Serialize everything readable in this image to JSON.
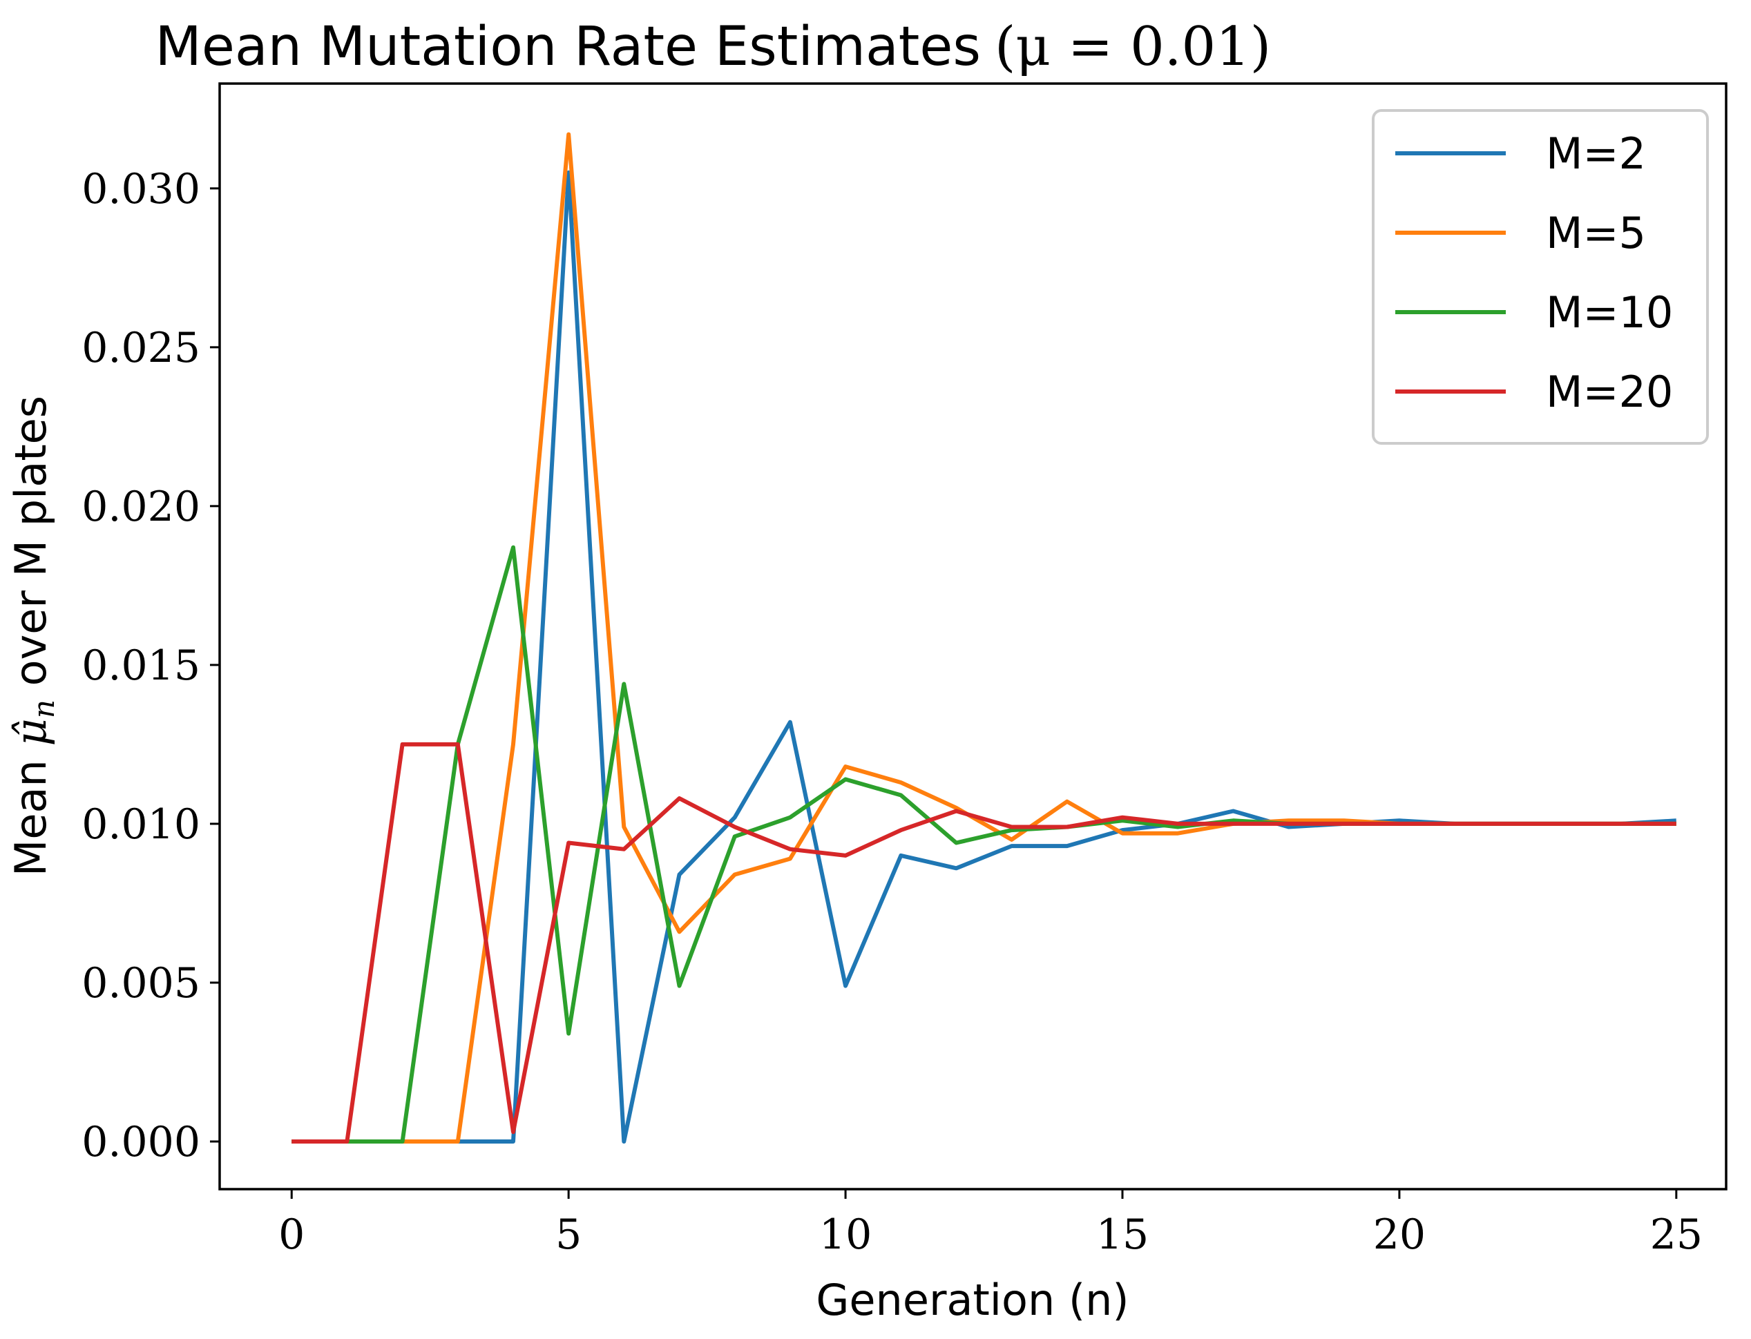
{
  "chart_data": {
    "type": "line",
    "title": "Mean Mutation Rate Estimates",
    "title_math": "(μ = 0.01)",
    "xlabel": "Generation (n)",
    "ylabel_prefix": "Mean ",
    "ylabel_symbol": "μ̂",
    "ylabel_subscript": "n",
    "ylabel_suffix": " over M plates",
    "xlim": [
      -1.3,
      25.9
    ],
    "ylim": [
      -0.0015,
      0.0333
    ],
    "x_ticks": [
      0,
      5,
      10,
      15,
      20,
      25
    ],
    "x_tick_labels": [
      "0",
      "5",
      "10",
      "15",
      "20",
      "25"
    ],
    "y_ticks": [
      0.0,
      0.005,
      0.01,
      0.015,
      0.02,
      0.025,
      0.03
    ],
    "y_tick_labels": [
      "0.000",
      "0.005",
      "0.010",
      "0.015",
      "0.020",
      "0.025",
      "0.030"
    ],
    "legend_position": "upper right",
    "x": [
      0,
      1,
      2,
      3,
      4,
      5,
      6,
      7,
      8,
      9,
      10,
      11,
      12,
      13,
      14,
      15,
      16,
      17,
      18,
      19,
      20,
      21,
      22,
      23,
      24,
      25
    ],
    "series": [
      {
        "name": "M=2",
        "color": "#1f77b4",
        "values": [
          0,
          0,
          0,
          0,
          0,
          0.0305,
          0,
          0.0084,
          0.0102,
          0.0132,
          0.0049,
          0.009,
          0.0086,
          0.0093,
          0.0093,
          0.0098,
          0.01,
          0.0104,
          0.0099,
          0.01,
          0.0101,
          0.01,
          0.01,
          0.01,
          0.01,
          0.0101
        ]
      },
      {
        "name": "M=5",
        "color": "#ff7f0e",
        "values": [
          0,
          0,
          0,
          0,
          0.0125,
          0.0317,
          0.0099,
          0.0066,
          0.0084,
          0.0089,
          0.0118,
          0.0113,
          0.0105,
          0.0095,
          0.0107,
          0.0097,
          0.0097,
          0.01,
          0.0101,
          0.0101,
          0.01,
          0.01,
          0.01,
          0.01,
          0.01,
          0.01
        ]
      },
      {
        "name": "M=10",
        "color": "#2ca02c",
        "values": [
          0,
          0,
          0,
          0.0125,
          0.0187,
          0.0034,
          0.0144,
          0.0049,
          0.0096,
          0.0102,
          0.0114,
          0.0109,
          0.0094,
          0.0098,
          0.0099,
          0.0101,
          0.0099,
          0.0101,
          0.01,
          0.01,
          0.01,
          0.01,
          0.01,
          0.01,
          0.01,
          0.01
        ]
      },
      {
        "name": "M=20",
        "color": "#d62728",
        "values": [
          0,
          0,
          0.0125,
          0.0125,
          0.0003,
          0.0094,
          0.0092,
          0.0108,
          0.0099,
          0.0092,
          0.009,
          0.0098,
          0.0104,
          0.0099,
          0.0099,
          0.0102,
          0.01,
          0.01,
          0.01,
          0.01,
          0.01,
          0.01,
          0.01,
          0.01,
          0.01,
          0.01
        ]
      }
    ]
  }
}
